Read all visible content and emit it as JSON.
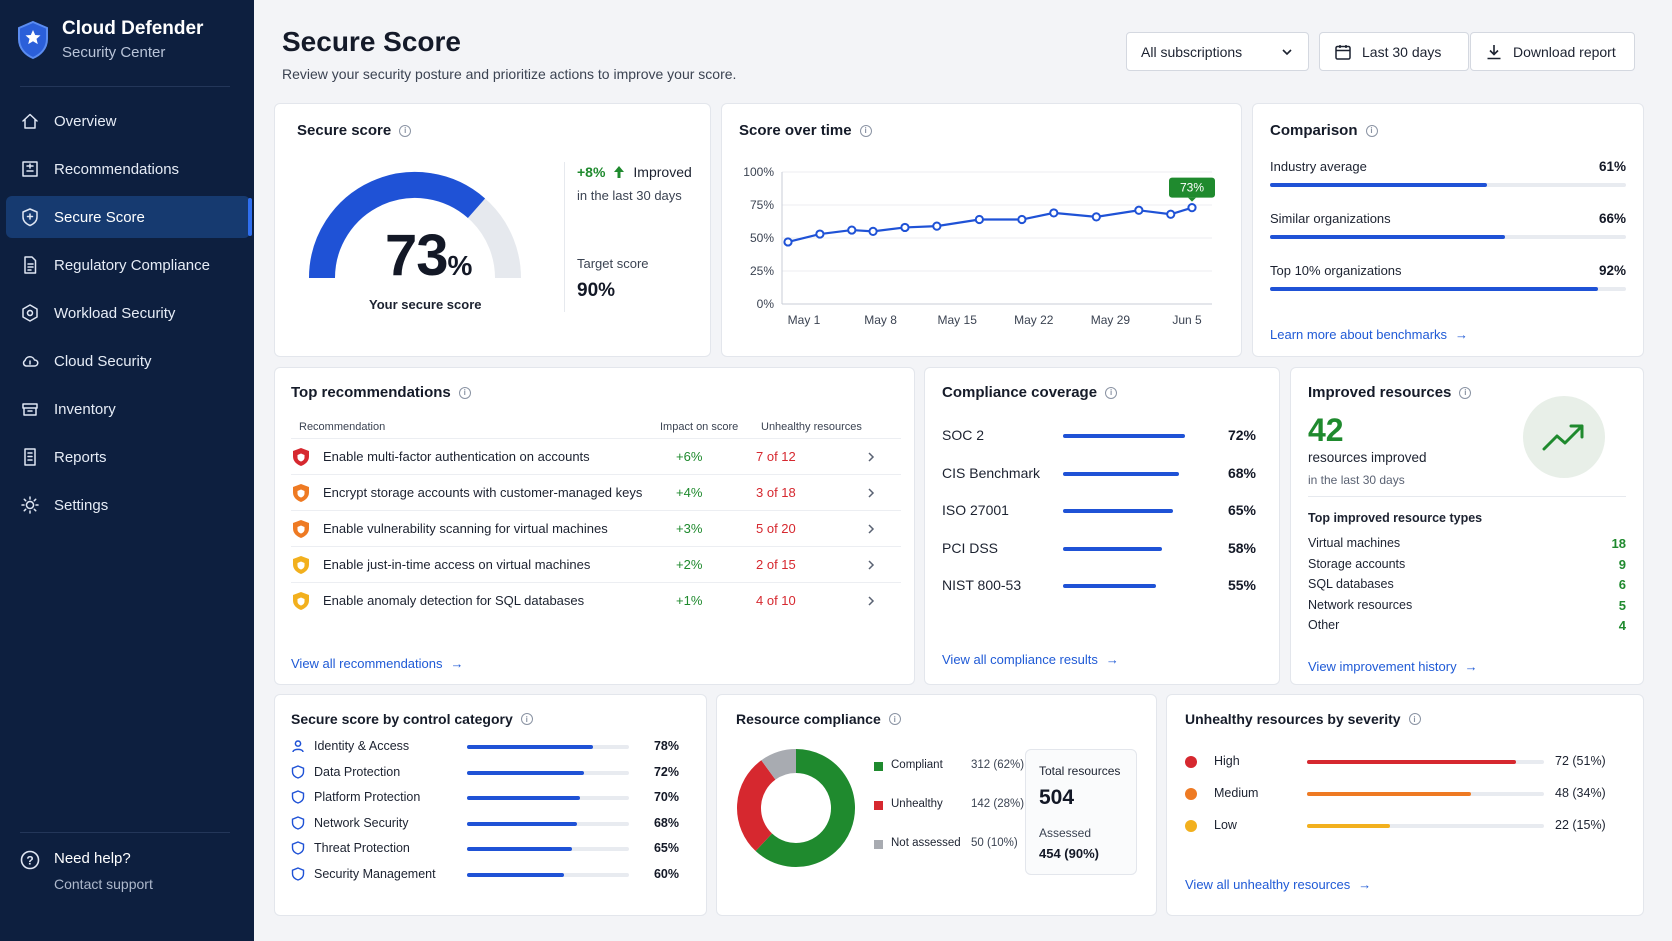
{
  "sidebar": {
    "brand_title": "Cloud Defender",
    "brand_subtitle": "Security Center",
    "items": [
      {
        "label": "Overview",
        "icon": "home-icon"
      },
      {
        "label": "Recommendations",
        "icon": "list-icon"
      },
      {
        "label": "Secure Score",
        "icon": "shield-icon",
        "active": true
      },
      {
        "label": "Regulatory Compliance",
        "icon": "document-icon"
      },
      {
        "label": "Workload Security",
        "icon": "gear-shield-icon"
      },
      {
        "label": "Cloud Security",
        "icon": "cloud-icon"
      },
      {
        "label": "Inventory",
        "icon": "inventory-icon"
      },
      {
        "label": "Reports",
        "icon": "report-icon"
      },
      {
        "label": "Settings",
        "icon": "settings-icon"
      }
    ],
    "help_title": "Need help?",
    "help_link": "Contact support"
  },
  "header": {
    "title": "Secure Score",
    "subtitle": "Review your security posture and prioritize actions to improve your score.",
    "subscriptions": "All subscriptions",
    "date_range": "Last 30 days",
    "download": "Download report"
  },
  "secure_score": {
    "title": "Secure score",
    "value": "73",
    "unit": "%",
    "fraction": 0.73,
    "caption": "Your secure score",
    "change": "+8%",
    "change_label": "Improved",
    "change_period": "in the last 30 days",
    "target_label": "Target score",
    "target_value": "90%"
  },
  "score_over_time": {
    "title": "Score over time",
    "chart_data": {
      "type": "line",
      "y_ticks": [
        "100%",
        "75%",
        "50%",
        "25%",
        "0%"
      ],
      "x_ticks": [
        "May 1",
        "May 8",
        "May 15",
        "May 22",
        "May 29",
        "Jun 5"
      ],
      "ylim": [
        0,
        100
      ],
      "x": [
        0,
        3,
        6,
        8,
        11,
        14,
        18,
        22,
        25,
        29,
        33,
        36,
        38
      ],
      "values": [
        47,
        53,
        56,
        55,
        58,
        59,
        64,
        64,
        69,
        66,
        71,
        68,
        73
      ],
      "last_label": "73%"
    }
  },
  "comparison": {
    "title": "Comparison",
    "items": [
      {
        "label": "Industry average",
        "value": "61%",
        "fraction": 0.61
      },
      {
        "label": "Similar organizations",
        "value": "66%",
        "fraction": 0.66
      },
      {
        "label": "Top 10% organizations",
        "value": "92%",
        "fraction": 0.92
      }
    ],
    "link": "Learn more about benchmarks"
  },
  "recommendations": {
    "title": "Top recommendations",
    "col_rec": "Recommendation",
    "col_impact": "Impact on score",
    "col_unhealthy": "Unhealthy resources",
    "rows": [
      {
        "text": "Enable multi-factor authentication on accounts",
        "impact": "+6%",
        "unhealthy": "7 of 12",
        "color": "#d6282f"
      },
      {
        "text": "Encrypt storage accounts with customer-managed keys",
        "impact": "+4%",
        "unhealthy": "3 of 18",
        "color": "#ee7a23"
      },
      {
        "text": "Enable vulnerability scanning for virtual machines",
        "impact": "+3%",
        "unhealthy": "5 of 20",
        "color": "#ee7a23"
      },
      {
        "text": "Enable just-in-time access on virtual machines",
        "impact": "+2%",
        "unhealthy": "2 of 15",
        "color": "#f2b01e"
      },
      {
        "text": "Enable anomaly detection for SQL databases",
        "impact": "+1%",
        "unhealthy": "4 of 10",
        "color": "#f2b01e"
      }
    ],
    "link": "View all recommendations"
  },
  "compliance": {
    "title": "Compliance coverage",
    "items": [
      {
        "label": "SOC 2",
        "value": "72%",
        "fraction": 0.72
      },
      {
        "label": "CIS Benchmark",
        "value": "68%",
        "fraction": 0.68
      },
      {
        "label": "ISO 27001",
        "value": "65%",
        "fraction": 0.65
      },
      {
        "label": "PCI DSS",
        "value": "58%",
        "fraction": 0.58
      },
      {
        "label": "NIST 800-53",
        "value": "55%",
        "fraction": 0.55
      }
    ],
    "link": "View all compliance results"
  },
  "improved": {
    "title": "Improved resources",
    "count": "42",
    "count_label": "resources improved",
    "period": "in the last 30 days",
    "types_title": "Top improved resource types",
    "types": [
      {
        "label": "Virtual machines",
        "value": "18"
      },
      {
        "label": "Storage accounts",
        "value": "9"
      },
      {
        "label": "SQL databases",
        "value": "6"
      },
      {
        "label": "Network resources",
        "value": "5"
      },
      {
        "label": "Other",
        "value": "4"
      }
    ],
    "link": "View improvement history"
  },
  "control_category": {
    "title": "Secure score by control category",
    "items": [
      {
        "label": "Identity & Access",
        "value": "78%",
        "fraction": 0.78,
        "icon": "user-icon"
      },
      {
        "label": "Data Protection",
        "value": "72%",
        "fraction": 0.72,
        "icon": "database-icon"
      },
      {
        "label": "Platform Protection",
        "value": "70%",
        "fraction": 0.7,
        "icon": "platform-shield-icon"
      },
      {
        "label": "Network Security",
        "value": "68%",
        "fraction": 0.68,
        "icon": "network-icon"
      },
      {
        "label": "Threat Protection",
        "value": "65%",
        "fraction": 0.65,
        "icon": "threat-shield-icon"
      },
      {
        "label": "Security Management",
        "value": "60%",
        "fraction": 0.6,
        "icon": "management-shield-icon"
      }
    ]
  },
  "resource_compliance": {
    "title": "Resource compliance",
    "chart_data": {
      "type": "pie",
      "slices": [
        {
          "label": "Compliant",
          "count": "312 (62%)",
          "value": 62,
          "color": "#1f8a2e"
        },
        {
          "label": "Unhealthy",
          "count": "142 (28%)",
          "value": 28,
          "color": "#d6282f"
        },
        {
          "label": "Not assessed",
          "count": "50 (10%)",
          "value": 10,
          "color": "#a8abb1"
        }
      ]
    },
    "total_label": "Total resources",
    "total_value": "504",
    "assessed_label": "Assessed",
    "assessed_value": "454 (90%)"
  },
  "severity": {
    "title": "Unhealthy resources by severity",
    "items": [
      {
        "label": "High",
        "value": "72 (51%)",
        "fraction": 0.88,
        "color": "#d6282f"
      },
      {
        "label": "Medium",
        "value": "48 (34%)",
        "fraction": 0.69,
        "color": "#ee7a23"
      },
      {
        "label": "Low",
        "value": "22 (15%)",
        "fraction": 0.35,
        "color": "#f2b01e"
      }
    ],
    "link": "View all unhealthy resources"
  }
}
